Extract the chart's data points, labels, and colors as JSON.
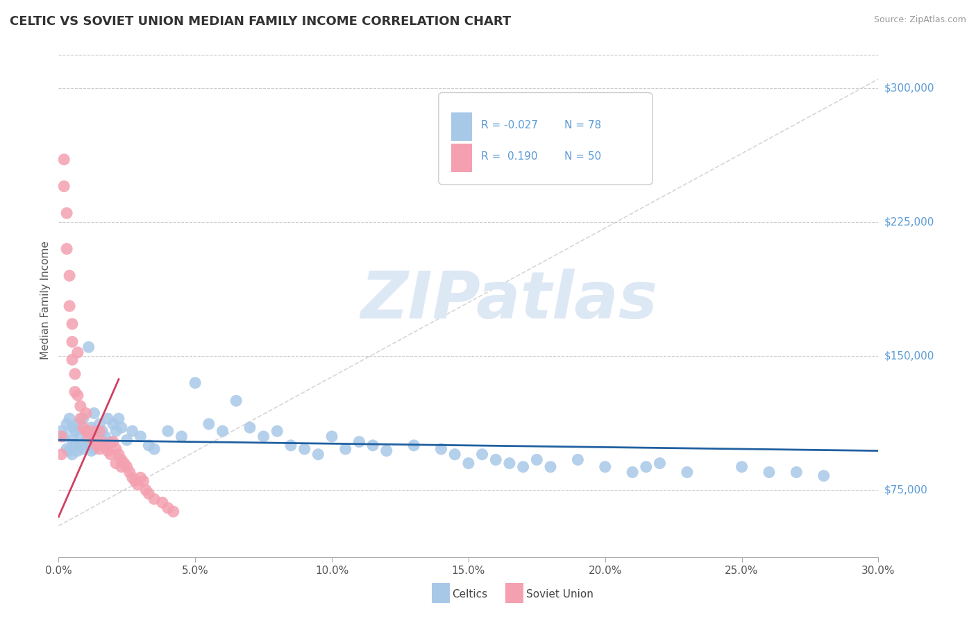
{
  "title": "CELTIC VS SOVIET UNION MEDIAN FAMILY INCOME CORRELATION CHART",
  "source_text": "Source: ZipAtlas.com",
  "ylabel": "Median Family Income",
  "xlim": [
    0.0,
    0.3
  ],
  "ylim": [
    37500,
    325000
  ],
  "xticks": [
    0.0,
    0.05,
    0.1,
    0.15,
    0.2,
    0.25,
    0.3
  ],
  "xticklabels": [
    "0.0%",
    "5.0%",
    "10.0%",
    "15.0%",
    "20.0%",
    "25.0%",
    "30.0%"
  ],
  "ytick_vals": [
    75000,
    150000,
    225000,
    300000
  ],
  "ytick_labels": [
    "$75,000",
    "$150,000",
    "$225,000",
    "$300,000"
  ],
  "ytick_color": "#5b9bd5",
  "grid_color": "#cccccc",
  "celtics_color": "#a8c8e8",
  "soviet_color": "#f4a0b0",
  "celtics_line_color": "#2060a0",
  "soviet_line_color": "#d04060",
  "ref_line_color": "#cccccc",
  "watermark_text": "ZIPatlas",
  "watermark_color": "#dde8f5",
  "legend_R1": "-0.027",
  "legend_N1": "78",
  "legend_R2": "0.190",
  "legend_N2": "50",
  "legend_label1": "Celtics",
  "legend_label2": "Soviet Union",
  "celtics_x": [
    0.001,
    0.002,
    0.003,
    0.003,
    0.004,
    0.004,
    0.005,
    0.005,
    0.005,
    0.006,
    0.006,
    0.007,
    0.007,
    0.008,
    0.008,
    0.009,
    0.009,
    0.01,
    0.01,
    0.011,
    0.011,
    0.012,
    0.012,
    0.013,
    0.013,
    0.014,
    0.015,
    0.015,
    0.016,
    0.017,
    0.018,
    0.019,
    0.02,
    0.021,
    0.022,
    0.023,
    0.025,
    0.027,
    0.03,
    0.033,
    0.035,
    0.04,
    0.045,
    0.05,
    0.055,
    0.06,
    0.065,
    0.07,
    0.075,
    0.08,
    0.085,
    0.09,
    0.095,
    0.1,
    0.105,
    0.11,
    0.115,
    0.12,
    0.13,
    0.14,
    0.145,
    0.15,
    0.155,
    0.16,
    0.165,
    0.17,
    0.175,
    0.18,
    0.19,
    0.2,
    0.21,
    0.215,
    0.22,
    0.23,
    0.25,
    0.26,
    0.27,
    0.28
  ],
  "celtics_y": [
    108000,
    105000,
    112000,
    98000,
    115000,
    97000,
    110000,
    103000,
    95000,
    108000,
    100000,
    112000,
    97000,
    106000,
    100000,
    115000,
    98000,
    108000,
    102000,
    155000,
    100000,
    110000,
    97000,
    118000,
    98000,
    108000,
    112000,
    100000,
    108000,
    105000,
    115000,
    102000,
    112000,
    108000,
    115000,
    110000,
    103000,
    108000,
    105000,
    100000,
    98000,
    108000,
    105000,
    135000,
    112000,
    108000,
    125000,
    110000,
    105000,
    108000,
    100000,
    98000,
    95000,
    105000,
    98000,
    102000,
    100000,
    97000,
    100000,
    98000,
    95000,
    90000,
    95000,
    92000,
    90000,
    88000,
    92000,
    88000,
    92000,
    88000,
    85000,
    88000,
    90000,
    85000,
    88000,
    85000,
    85000,
    83000
  ],
  "soviet_x": [
    0.001,
    0.001,
    0.002,
    0.002,
    0.003,
    0.003,
    0.004,
    0.004,
    0.005,
    0.005,
    0.005,
    0.006,
    0.006,
    0.007,
    0.007,
    0.008,
    0.008,
    0.009,
    0.01,
    0.01,
    0.011,
    0.012,
    0.013,
    0.014,
    0.015,
    0.015,
    0.016,
    0.017,
    0.018,
    0.019,
    0.02,
    0.021,
    0.021,
    0.022,
    0.023,
    0.023,
    0.024,
    0.025,
    0.026,
    0.027,
    0.028,
    0.029,
    0.03,
    0.031,
    0.032,
    0.033,
    0.035,
    0.038,
    0.04,
    0.042
  ],
  "soviet_y": [
    105000,
    95000,
    260000,
    245000,
    230000,
    210000,
    195000,
    178000,
    168000,
    158000,
    148000,
    140000,
    130000,
    152000,
    128000,
    122000,
    115000,
    110000,
    118000,
    108000,
    105000,
    108000,
    103000,
    100000,
    108000,
    98000,
    102000,
    100000,
    97000,
    95000,
    102000,
    98000,
    90000,
    95000,
    92000,
    88000,
    90000,
    88000,
    85000,
    82000,
    80000,
    78000,
    82000,
    80000,
    75000,
    73000,
    70000,
    68000,
    65000,
    63000
  ]
}
